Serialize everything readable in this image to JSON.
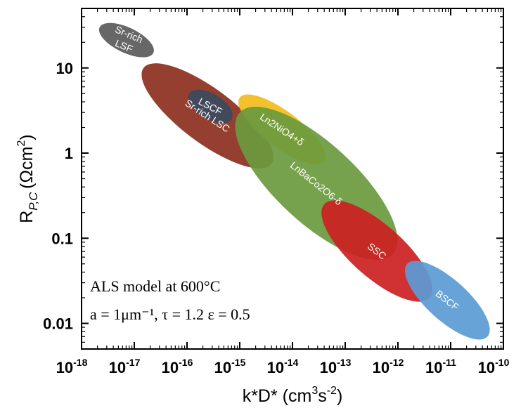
{
  "chart_data": {
    "type": "scatter",
    "xlabel": "k*D* (cm³s⁻²)",
    "ylabel": "R P,C (Ωcm²)",
    "xscale": "log",
    "yscale": "log",
    "xlim": [
      1e-18,
      1e-10
    ],
    "ylim": [
      0.005,
      50
    ],
    "x_ticks": [
      {
        "value": 1e-18,
        "base": "10",
        "exp": "-18"
      },
      {
        "value": 1e-17,
        "base": "10",
        "exp": "-17"
      },
      {
        "value": 1e-16,
        "base": "10",
        "exp": "-16"
      },
      {
        "value": 1e-15,
        "base": "10",
        "exp": "-15"
      },
      {
        "value": 1e-14,
        "base": "10",
        "exp": "-14"
      },
      {
        "value": 1e-13,
        "base": "10",
        "exp": "-13"
      },
      {
        "value": 1e-12,
        "base": "10",
        "exp": "-12"
      },
      {
        "value": 1e-11,
        "base": "10",
        "exp": "-11"
      },
      {
        "value": 1e-10,
        "base": "10",
        "exp": "-10"
      }
    ],
    "y_ticks": [
      {
        "value": 10,
        "label": "10"
      },
      {
        "value": 1,
        "label": "1"
      },
      {
        "value": 0.1,
        "label": "0.1"
      },
      {
        "value": 0.01,
        "label": "0.01"
      }
    ],
    "annotations": [
      "ALS model at 600°C",
      "a = 1μm⁻¹, τ = 1.2 ε = 0.5"
    ],
    "regions": [
      {
        "name": "Sr-rich LSF",
        "label_lines": [
          "Sr-rich",
          "LSF"
        ],
        "color": "#5a5a5a",
        "x_range": [
          2.2e-18,
          2.3e-17
        ],
        "y_range": [
          15,
          30
        ]
      },
      {
        "name": "Sr-rich LSC",
        "label_lines": [
          "Sr-rich LSC"
        ],
        "color": "#8b2f1e",
        "x_range": [
          1.5e-17,
          4e-15
        ],
        "y_range": [
          0.75,
          10
        ]
      },
      {
        "name": "LSCF",
        "label_lines": [
          "LSCF"
        ],
        "color": "#3a4a5e",
        "x_range": [
          1.1e-16,
          7e-16
        ],
        "y_range": [
          2.5,
          5
        ]
      },
      {
        "name": "Ln2NiO4+δ",
        "label_lines": [
          "Ln2NiO4+δ"
        ],
        "color": "#f2bc1a",
        "x_range": [
          1e-15,
          4e-14
        ],
        "y_range": [
          0.8,
          4.5
        ]
      },
      {
        "name": "LnBaCo2O6-δ",
        "label_lines": [
          "LnBaCo2O6-δ"
        ],
        "color": "#6a9a3e",
        "x_range": [
          1e-15,
          8e-13
        ],
        "y_range": [
          0.065,
          3
        ]
      },
      {
        "name": "SSC",
        "label_lines": [
          "SSC"
        ],
        "color": "#cc1f22",
        "x_range": [
          4e-14,
          4e-12
        ],
        "y_range": [
          0.02,
          0.25
        ]
      },
      {
        "name": "BSCF",
        "label_lines": [
          "BSCF"
        ],
        "color": "#5b9bd5",
        "x_range": [
          1.5e-12,
          5e-11
        ],
        "y_range": [
          0.007,
          0.05
        ]
      }
    ]
  }
}
